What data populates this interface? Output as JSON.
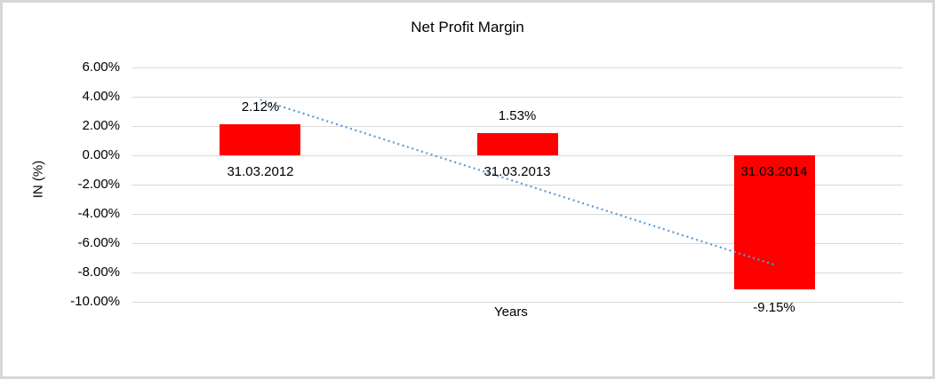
{
  "window": {
    "background": "#ffffff",
    "frame_border_color": "#d7d7d7"
  },
  "chart_data": {
    "type": "bar",
    "title": "Net Profit Margin",
    "xlabel": "Years",
    "ylabel": "IN (%)",
    "categories": [
      "31.03.2012",
      "31.03.2013",
      "31.03.2014"
    ],
    "values": [
      2.12,
      1.53,
      -9.15
    ],
    "data_labels": [
      "2.12%",
      "1.53%",
      "-9.15%"
    ],
    "yticks": [
      "6.00%",
      "4.00%",
      "2.00%",
      "0.00%",
      "-2.00%",
      "-4.00%",
      "-6.00%",
      "-8.00%",
      "-10.00%"
    ],
    "ytick_values": [
      6,
      4,
      2,
      0,
      -2,
      -4,
      -6,
      -8,
      -10
    ],
    "ylim": [
      -10,
      6
    ],
    "grid": true,
    "legend": "none",
    "bar_color": "#ff0000",
    "gridline_color": "#d9d9d9",
    "trendline": {
      "type": "linear",
      "style": "dotted",
      "color": "#5b9bd5"
    }
  }
}
